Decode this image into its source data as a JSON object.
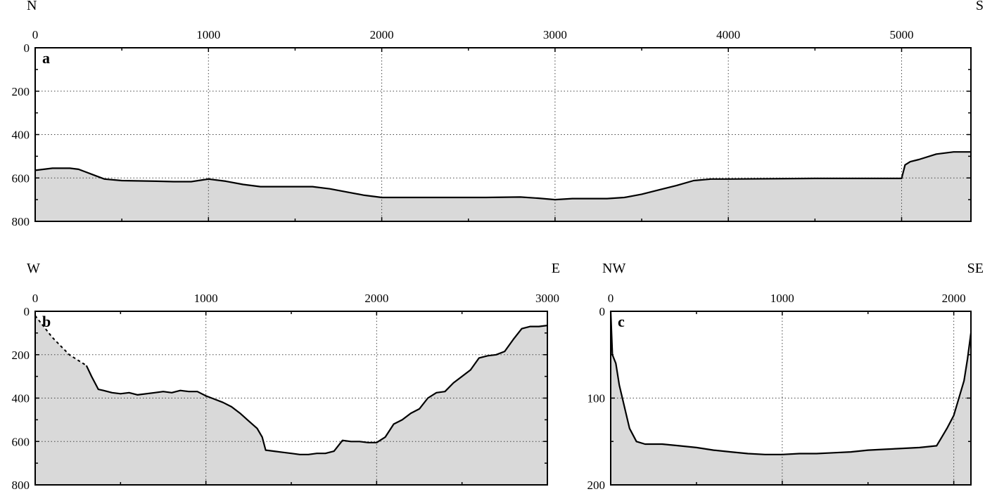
{
  "colors": {
    "fill": "#d9d9d9",
    "line": "#000000",
    "grid": "#444444",
    "background": "#ffffff"
  },
  "chart_data": [
    {
      "type": "area",
      "panel_label": "a",
      "direction_left": "N",
      "direction_right": "S",
      "xlim": [
        0,
        5400
      ],
      "ylim": [
        0,
        800
      ],
      "y_inverted": true,
      "x_ticks": [
        0,
        1000,
        2000,
        3000,
        4000,
        5000
      ],
      "x_tick_labels": [
        "0",
        "1000",
        "2000",
        "3000",
        "4000",
        "5000"
      ],
      "y_ticks": [
        0,
        200,
        400,
        600,
        800
      ],
      "y_tick_labels": [
        "0",
        "200",
        "400",
        "600",
        "800"
      ],
      "grid": true,
      "x": [
        0,
        100,
        200,
        250,
        300,
        350,
        400,
        500,
        700,
        800,
        900,
        1000,
        1100,
        1200,
        1300,
        1400,
        1500,
        1600,
        1700,
        1800,
        1900,
        2000,
        2100,
        2200,
        2400,
        2600,
        2800,
        2900,
        3000,
        3100,
        3200,
        3300,
        3400,
        3500,
        3600,
        3700,
        3800,
        3900,
        4000,
        4500,
        4800,
        5000,
        5020,
        5050,
        5100,
        5200,
        5300,
        5400
      ],
      "y": [
        565,
        555,
        555,
        560,
        575,
        590,
        605,
        612,
        615,
        617,
        617,
        605,
        615,
        630,
        640,
        640,
        640,
        640,
        650,
        665,
        680,
        690,
        690,
        690,
        690,
        690,
        688,
        693,
        700,
        695,
        695,
        695,
        690,
        675,
        655,
        635,
        612,
        605,
        605,
        602,
        602,
        602,
        540,
        525,
        515,
        490,
        480,
        480
      ],
      "dashed_segment": null
    },
    {
      "type": "area",
      "panel_label": "b",
      "direction_left": "W",
      "direction_right": "E",
      "xlim": [
        0,
        3000
      ],
      "ylim": [
        0,
        800
      ],
      "y_inverted": true,
      "x_ticks": [
        0,
        1000,
        2000,
        3000
      ],
      "x_tick_labels": [
        "0",
        "1000",
        "2000",
        "3000"
      ],
      "y_ticks": [
        0,
        200,
        400,
        600,
        800
      ],
      "y_tick_labels": [
        "0",
        "200",
        "400",
        "600",
        "800"
      ],
      "grid": true,
      "dashed_segment": {
        "x": [
          0,
          100,
          200,
          300
        ],
        "y": [
          20,
          120,
          200,
          250
        ]
      },
      "x": [
        300,
        330,
        360,
        370,
        400,
        450,
        500,
        550,
        600,
        700,
        750,
        800,
        850,
        900,
        950,
        1000,
        1050,
        1100,
        1150,
        1200,
        1250,
        1300,
        1330,
        1350,
        1400,
        1450,
        1500,
        1550,
        1600,
        1650,
        1700,
        1750,
        1800,
        1850,
        1900,
        1950,
        2000,
        2050,
        2100,
        2150,
        2200,
        2250,
        2300,
        2350,
        2400,
        2450,
        2500,
        2550,
        2600,
        2650,
        2700,
        2750,
        2800,
        2850,
        2900,
        2950,
        3000
      ],
      "y": [
        250,
        300,
        345,
        360,
        365,
        375,
        380,
        375,
        385,
        375,
        370,
        375,
        365,
        370,
        370,
        390,
        405,
        420,
        440,
        470,
        505,
        540,
        580,
        640,
        645,
        650,
        655,
        660,
        660,
        655,
        655,
        645,
        595,
        600,
        600,
        605,
        605,
        580,
        520,
        500,
        470,
        450,
        400,
        375,
        370,
        330,
        300,
        270,
        215,
        205,
        200,
        185,
        130,
        80,
        70,
        70,
        65
      ],
      "grid_labels": null
    },
    {
      "type": "area",
      "panel_label": "c",
      "direction_left": "NW",
      "direction_right": "SE",
      "xlim": [
        0,
        2100
      ],
      "ylim": [
        0,
        200
      ],
      "y_inverted": true,
      "x_ticks": [
        0,
        1000,
        2000
      ],
      "x_tick_labels": [
        "0",
        "1000",
        "2000"
      ],
      "y_ticks": [
        0,
        100,
        200
      ],
      "y_tick_labels": [
        "0",
        "100",
        "200"
      ],
      "grid": true,
      "dashed_segment": null,
      "x": [
        0,
        10,
        30,
        50,
        80,
        110,
        150,
        200,
        300,
        400,
        500,
        600,
        700,
        800,
        900,
        1000,
        1100,
        1200,
        1300,
        1400,
        1500,
        1600,
        1700,
        1800,
        1900,
        1930,
        1960,
        2000,
        2030,
        2060,
        2080,
        2100
      ],
      "y": [
        0,
        50,
        60,
        85,
        110,
        135,
        150,
        153,
        153,
        155,
        157,
        160,
        162,
        164,
        165,
        165,
        164,
        164,
        163,
        162,
        160,
        159,
        158,
        157,
        155,
        145,
        135,
        120,
        100,
        80,
        55,
        25
      ]
    }
  ]
}
